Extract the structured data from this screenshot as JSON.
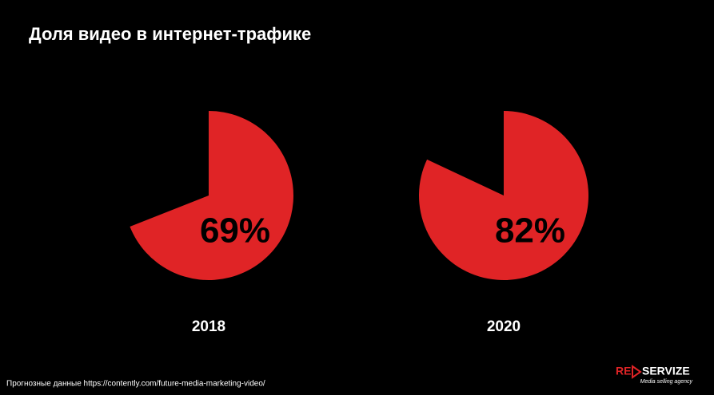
{
  "title": "Доля видео в интернет-трафике",
  "chart_data": [
    {
      "type": "pie",
      "title": "2018",
      "values": [
        69
      ],
      "value_labels": [
        "69%"
      ],
      "color": "#e02426"
    },
    {
      "type": "pie",
      "title": "2020",
      "values": [
        82
      ],
      "value_labels": [
        "82%"
      ],
      "color": "#e02426"
    }
  ],
  "footer": {
    "source": "Прогнозные данные https://contently.com/future-media-marketing-video/",
    "logo_left": "RE",
    "logo_right": "SERVIZE",
    "tagline": "Media selling agency"
  }
}
